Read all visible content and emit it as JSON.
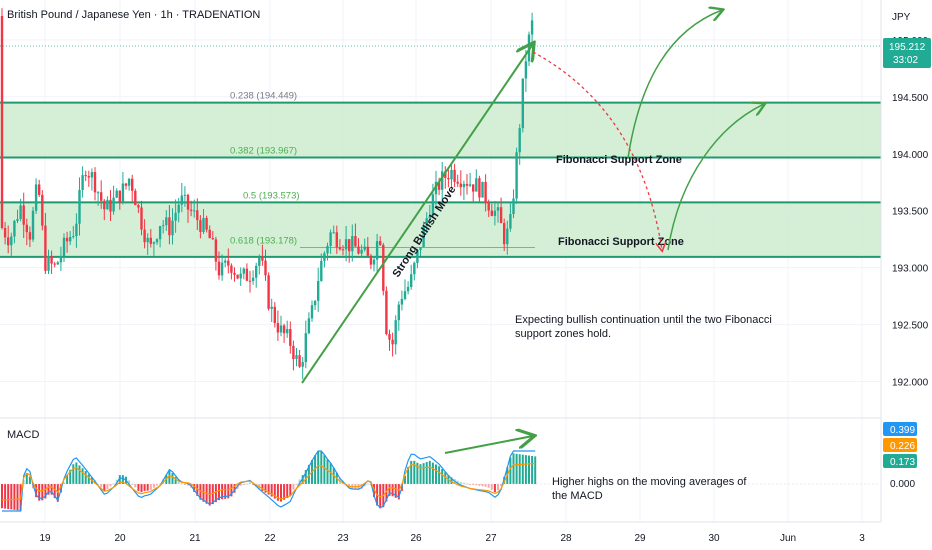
{
  "header": {
    "title": "British Pound / Japanese Yen · 1h · TRADENATION",
    "currency": "JPY"
  },
  "price_badge": {
    "price": "195.212",
    "countdown": "33:02",
    "color": "#22ab94"
  },
  "colors": {
    "up": "#22ab94",
    "down": "#f23645",
    "zone_fill": "#cdeccf",
    "zone_border": "#1e9a6e",
    "arrow": "#43a047",
    "dotted": "#f23645",
    "macd": "#2196f3",
    "signal": "#ff9800"
  },
  "fib_levels": [
    {
      "label": "0.238 (194.449)",
      "price": 194.449
    },
    {
      "label": "0.382 (193.967)",
      "price": 193.967
    },
    {
      "label": "0.5 (193.573)",
      "price": 193.573
    },
    {
      "label": "0.618 (193.178)",
      "price": 193.178
    }
  ],
  "zones": [
    {
      "label": "Fibonacci Support Zone",
      "top": 194.449,
      "bottom": 193.967
    },
    {
      "label": "Fibonacci Support Zone",
      "top": 193.573,
      "bottom": 193.095
    }
  ],
  "annotations": {
    "trend_label": "Strong Bullish Move",
    "note_line1": "Expecting bullish continuation until the two Fibonacci",
    "note_line2": "support zones hold.",
    "macd_note_line1": "Higher highs on the moving averages of",
    "macd_note_line2": "the MACD"
  },
  "macd_panel": {
    "title": "MACD",
    "values": [
      {
        "text": "0.399",
        "color": "#2196f3"
      },
      {
        "text": "0.226",
        "color": "#ff9800"
      },
      {
        "text": "0.173",
        "color": "#22ab94"
      }
    ],
    "zero_label": "0.000"
  },
  "chart_data": {
    "type": "candlestick",
    "title": "British Pound / Japanese Yen · 1h · TRADENATION",
    "ylim": [
      191.75,
      195.35
    ],
    "yticks": [
      "195.000",
      "194.500",
      "194.000",
      "193.500",
      "193.000",
      "192.500",
      "192.000"
    ],
    "xticks": [
      "19",
      "20",
      "21",
      "22",
      "23",
      "26",
      "27",
      "28",
      "29",
      "30",
      "Jun",
      "3"
    ],
    "approx_close_path": [
      {
        "x": "19",
        "y": 193.3
      },
      {
        "x": "20",
        "y": 193.6
      },
      {
        "x": "21",
        "y": 193.15
      },
      {
        "x": "22",
        "y": 192.1
      },
      {
        "x": "23",
        "y": 193.3
      },
      {
        "x": "26",
        "y": 193.85
      },
      {
        "x": "27",
        "y": 193.2
      },
      {
        "x": "27",
        "y": 195.212
      }
    ],
    "macd": {
      "macd": 0.399,
      "signal": 0.226,
      "histogram": 0.173
    }
  }
}
